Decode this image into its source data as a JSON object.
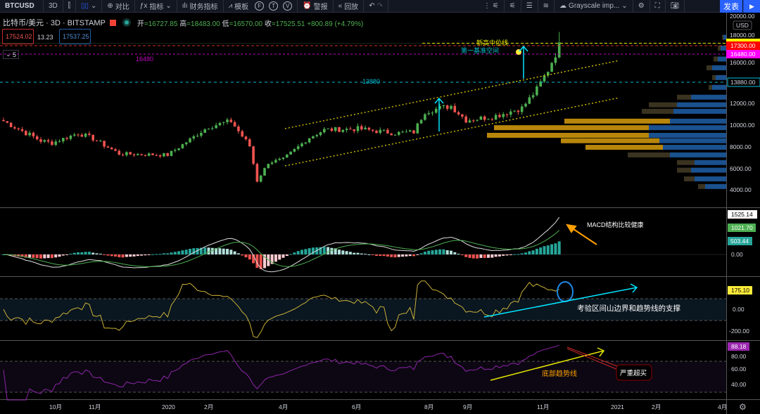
{
  "toolbar": {
    "symbol": "BTCUSD",
    "interval": "3D",
    "compare": "对比",
    "indicators": "指标",
    "financials": "财务指标",
    "templates": "模板",
    "f": "F",
    "t": "T",
    "v": "V",
    "alert": "警报",
    "replay": "回放",
    "theme": "Grayscale imp...",
    "publish": "发表"
  },
  "legend": {
    "title": "比特币/美元 · 3D · BITSTAMP",
    "open_label": "开",
    "open": "16727.85",
    "high_label": "高",
    "high": "18483.00",
    "low_label": "低",
    "low": "16570.00",
    "close_label": "收",
    "close": "17525.51",
    "change": "+800.89 (+4.79%)",
    "sell": "17524.02",
    "spread": "13.23",
    "buy": "17537.25",
    "collapse": "5"
  },
  "price_axis": {
    "currency": "USD",
    "ticks": [
      "20000.00",
      "18000.00",
      "16000.00",
      "12000.00",
      "10000.00",
      "8000.00",
      "6000.00",
      "4000.00"
    ],
    "tags": {
      "yellow": "",
      "red": "17300.00",
      "magenta": "16480.00",
      "cyan": "13880.00"
    }
  },
  "macd_axis": {
    "macd": "1525.14",
    "signal": "1021.70",
    "hist": "503.44",
    "zero": "0.00"
  },
  "cci_axis": {
    "value": "175.10",
    "zero": "0.00",
    "neg": "-200.00"
  },
  "rsi_axis": {
    "value": "88.18",
    "t80": "80.00",
    "t60": "60.00",
    "t40": "40.00"
  },
  "time_axis": [
    "10月",
    "11月",
    "2020",
    "2月",
    "4月",
    "6月",
    "8月",
    "9月",
    "11月",
    "2021",
    "2月",
    "4月"
  ],
  "annotations": {
    "level_16480": "16480",
    "level_13880": "13880",
    "new_high_mid": "新高中位线",
    "first_base": "第一基准空间",
    "macd_note": "MACD结构比较健康",
    "cci_note": "考验区间山边界和趋势线的支撑",
    "rsi_trend": "底部趋势线",
    "overbought": "严重超买"
  },
  "colors": {
    "up": "#4caf50",
    "down": "#ef5350",
    "bg": "#000000",
    "accent": "#2962ff"
  },
  "chart_data": {
    "type": "candlestick",
    "interval": "3D",
    "price_path": [
      [
        0,
        10300
      ],
      [
        10,
        8500
      ],
      [
        13,
        8300
      ],
      [
        20,
        9200
      ],
      [
        24,
        8700
      ],
      [
        31,
        7300
      ],
      [
        44,
        7200
      ],
      [
        55,
        9800
      ],
      [
        61,
        10300
      ],
      [
        66,
        8000
      ],
      [
        68,
        4800
      ],
      [
        71,
        6500
      ],
      [
        75,
        6800
      ],
      [
        82,
        8800
      ],
      [
        86,
        9500
      ],
      [
        95,
        9600
      ],
      [
        105,
        9200
      ],
      [
        110,
        9300
      ],
      [
        113,
        11200
      ],
      [
        120,
        11700
      ],
      [
        124,
        10400
      ],
      [
        131,
        10700
      ],
      [
        139,
        11500
      ],
      [
        143,
        13200
      ],
      [
        146,
        15000
      ],
      [
        148,
        16500
      ],
      [
        149,
        17525
      ]
    ]
  }
}
